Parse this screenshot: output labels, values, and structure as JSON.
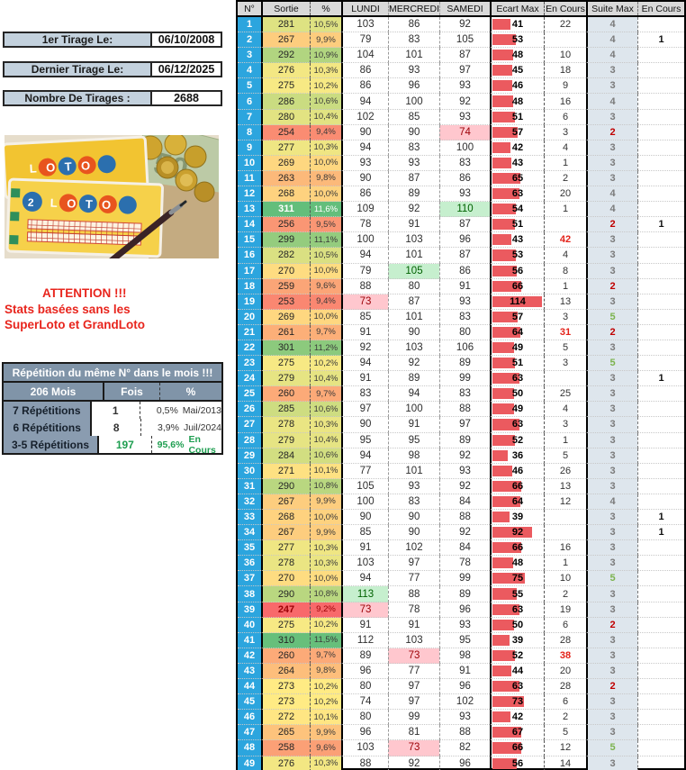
{
  "left": {
    "info_boxes": [
      {
        "label": "1er Tirage Le:",
        "value": "06/10/2008"
      },
      {
        "label": "Dernier Tirage Le:",
        "value": "06/12/2025"
      },
      {
        "label": "Nombre De Tirages :",
        "value": "2688"
      }
    ],
    "photo": {
      "loto_label": "LOTO",
      "note_label": "50"
    },
    "attention_lines": [
      "ATTENTION !!!",
      "Stats basées sans les",
      "SuperLoto et GrandLoto"
    ],
    "repetition": {
      "title": "Répétition du même N° dans le mois !!!",
      "headers": [
        "206 Mois",
        "Fois",
        "%"
      ],
      "rows": [
        {
          "label": "7 Répétitions",
          "fois": "1",
          "pct": "0,5%",
          "note": "Mai/2013"
        },
        {
          "label": "6 Répétitions",
          "fois": "8",
          "pct": "3,9%",
          "note": "Juil/2024"
        },
        {
          "label": "3-5 Répétitions",
          "fois": "197",
          "pct": "95,6%",
          "note": "En Cours"
        }
      ]
    }
  },
  "table": {
    "headers": [
      "N°",
      "Sortie",
      "%",
      "LUNDI",
      "MERCREDI",
      "SAMEDI",
      "Ecart Max",
      "En Cours",
      "Suite Max",
      "En Cours"
    ],
    "bar_scale_max": 120,
    "colors": {
      "scale_min": "#F8696B",
      "scale_mid": "#FFEB84",
      "scale_max": "#63BE7B",
      "bar": "#EB5A5F",
      "numero_blue": "#2CA5DE",
      "suite_bg": "#DEE6ED",
      "bad_bg": "#FFC7CE",
      "bad_text": "#9C0006",
      "good_bg": "#C6EFCE",
      "good_text": "#006100"
    },
    "rows": [
      [
        1,
        281,
        "10,5%",
        103,
        86,
        92,
        41,
        "22",
        4,
        ""
      ],
      [
        2,
        267,
        "9,9%",
        79,
        83,
        105,
        53,
        "",
        4,
        "1"
      ],
      [
        3,
        292,
        "10,9%",
        104,
        101,
        87,
        48,
        "10",
        4,
        ""
      ],
      [
        4,
        276,
        "10,3%",
        86,
        93,
        97,
        45,
        "18",
        3,
        ""
      ],
      [
        5,
        275,
        "10,2%",
        86,
        96,
        93,
        46,
        "9",
        3,
        ""
      ],
      [
        6,
        286,
        "10,6%",
        94,
        100,
        92,
        48,
        "16",
        4,
        ""
      ],
      [
        7,
        280,
        "10,4%",
        102,
        85,
        93,
        51,
        "6",
        3,
        ""
      ],
      [
        8,
        254,
        "9,4%",
        90,
        90,
        74,
        57,
        "3",
        2,
        ""
      ],
      [
        9,
        277,
        "10,3%",
        94,
        83,
        100,
        42,
        "4",
        3,
        ""
      ],
      [
        10,
        269,
        "10,0%",
        93,
        93,
        83,
        43,
        "1",
        3,
        ""
      ],
      [
        11,
        263,
        "9,8%",
        90,
        87,
        86,
        65,
        "2",
        3,
        ""
      ],
      [
        12,
        268,
        "10,0%",
        86,
        89,
        93,
        63,
        "20",
        4,
        ""
      ],
      [
        13,
        311,
        "11,6%",
        109,
        92,
        110,
        54,
        "1",
        4,
        ""
      ],
      [
        14,
        256,
        "9,5%",
        78,
        91,
        87,
        51,
        "",
        2,
        "1"
      ],
      [
        15,
        299,
        "11,1%",
        100,
        103,
        96,
        43,
        "42",
        3,
        ""
      ],
      [
        16,
        282,
        "10,5%",
        94,
        101,
        87,
        53,
        "4",
        3,
        ""
      ],
      [
        17,
        270,
        "10,0%",
        79,
        105,
        86,
        56,
        "8",
        3,
        ""
      ],
      [
        18,
        259,
        "9,6%",
        88,
        80,
        91,
        66,
        "1",
        2,
        ""
      ],
      [
        19,
        253,
        "9,4%",
        73,
        87,
        93,
        114,
        "13",
        3,
        ""
      ],
      [
        20,
        269,
        "10,0%",
        85,
        101,
        83,
        57,
        "3",
        5,
        ""
      ],
      [
        21,
        261,
        "9,7%",
        91,
        90,
        80,
        64,
        "31",
        2,
        ""
      ],
      [
        22,
        301,
        "11,2%",
        92,
        103,
        106,
        49,
        "5",
        3,
        ""
      ],
      [
        23,
        275,
        "10,2%",
        94,
        92,
        89,
        51,
        "3",
        5,
        ""
      ],
      [
        24,
        279,
        "10,4%",
        91,
        89,
        99,
        63,
        "",
        3,
        "1"
      ],
      [
        25,
        260,
        "9,7%",
        83,
        94,
        83,
        50,
        "25",
        3,
        ""
      ],
      [
        26,
        285,
        "10,6%",
        97,
        100,
        88,
        49,
        "4",
        3,
        ""
      ],
      [
        27,
        278,
        "10,3%",
        90,
        91,
        97,
        63,
        "3",
        3,
        ""
      ],
      [
        28,
        279,
        "10,4%",
        95,
        95,
        89,
        52,
        "1",
        3,
        ""
      ],
      [
        29,
        284,
        "10,6%",
        94,
        98,
        92,
        36,
        "5",
        3,
        ""
      ],
      [
        30,
        271,
        "10,1%",
        77,
        101,
        93,
        46,
        "26",
        3,
        ""
      ],
      [
        31,
        290,
        "10,8%",
        105,
        93,
        92,
        66,
        "13",
        3,
        ""
      ],
      [
        32,
        267,
        "9,9%",
        100,
        83,
        84,
        64,
        "12",
        4,
        ""
      ],
      [
        33,
        268,
        "10,0%",
        90,
        90,
        88,
        39,
        "",
        3,
        "1"
      ],
      [
        34,
        267,
        "9,9%",
        85,
        90,
        92,
        92,
        "",
        3,
        "1"
      ],
      [
        35,
        277,
        "10,3%",
        91,
        102,
        84,
        66,
        "16",
        3,
        ""
      ],
      [
        36,
        278,
        "10,3%",
        103,
        97,
        78,
        48,
        "1",
        3,
        ""
      ],
      [
        37,
        270,
        "10,0%",
        94,
        77,
        99,
        75,
        "10",
        5,
        ""
      ],
      [
        38,
        290,
        "10,8%",
        113,
        88,
        89,
        55,
        "2",
        3,
        ""
      ],
      [
        39,
        247,
        "9,2%",
        73,
        78,
        96,
        63,
        "19",
        3,
        ""
      ],
      [
        40,
        275,
        "10,2%",
        91,
        91,
        93,
        50,
        "6",
        2,
        ""
      ],
      [
        41,
        310,
        "11,5%",
        112,
        103,
        95,
        39,
        "28",
        3,
        ""
      ],
      [
        42,
        260,
        "9,7%",
        89,
        73,
        98,
        52,
        "38",
        3,
        ""
      ],
      [
        43,
        264,
        "9,8%",
        96,
        77,
        91,
        44,
        "20",
        3,
        ""
      ],
      [
        44,
        273,
        "10,2%",
        80,
        97,
        96,
        63,
        "28",
        2,
        ""
      ],
      [
        45,
        273,
        "10,2%",
        74,
        97,
        102,
        73,
        "6",
        3,
        ""
      ],
      [
        46,
        272,
        "10,1%",
        80,
        99,
        93,
        42,
        "2",
        3,
        ""
      ],
      [
        47,
        265,
        "9,9%",
        96,
        81,
        88,
        67,
        "5",
        3,
        ""
      ],
      [
        48,
        258,
        "9,6%",
        103,
        73,
        82,
        66,
        "12",
        5,
        ""
      ],
      [
        49,
        276,
        "10,3%",
        88,
        92,
        96,
        56,
        "14",
        3,
        ""
      ]
    ]
  }
}
